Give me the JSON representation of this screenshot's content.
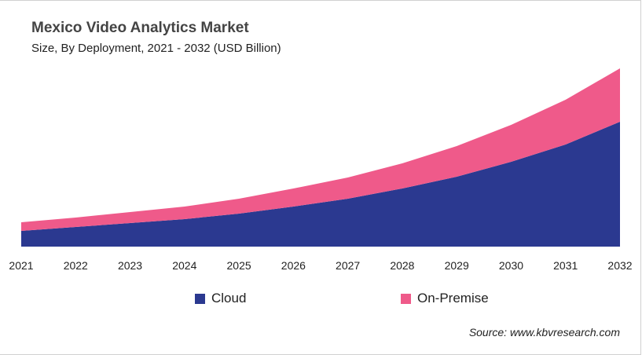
{
  "chart_data": {
    "type": "area",
    "stacked": true,
    "title": "Mexico Video Analytics Market",
    "subtitle": "Size, By Deployment, 2021 - 2032 (USD Billion)",
    "categories": [
      "2021",
      "2022",
      "2023",
      "2024",
      "2025",
      "2026",
      "2027",
      "2028",
      "2029",
      "2030",
      "2031",
      "2032"
    ],
    "series": [
      {
        "name": "Cloud",
        "color": "#2b3990",
        "values": [
          2.0,
          2.5,
          3.0,
          3.5,
          4.2,
          5.1,
          6.1,
          7.4,
          8.9,
          10.8,
          13.0,
          15.9
        ]
      },
      {
        "name": "On-Premise",
        "color": "#ef5a8a",
        "values": [
          1.1,
          1.2,
          1.4,
          1.6,
          1.9,
          2.3,
          2.7,
          3.2,
          3.9,
          4.7,
          5.7,
          6.8
        ]
      }
    ],
    "y_axis_visible": false,
    "grid": false,
    "legend_position": "bottom",
    "source": "Source: www.kbvresearch.com"
  }
}
